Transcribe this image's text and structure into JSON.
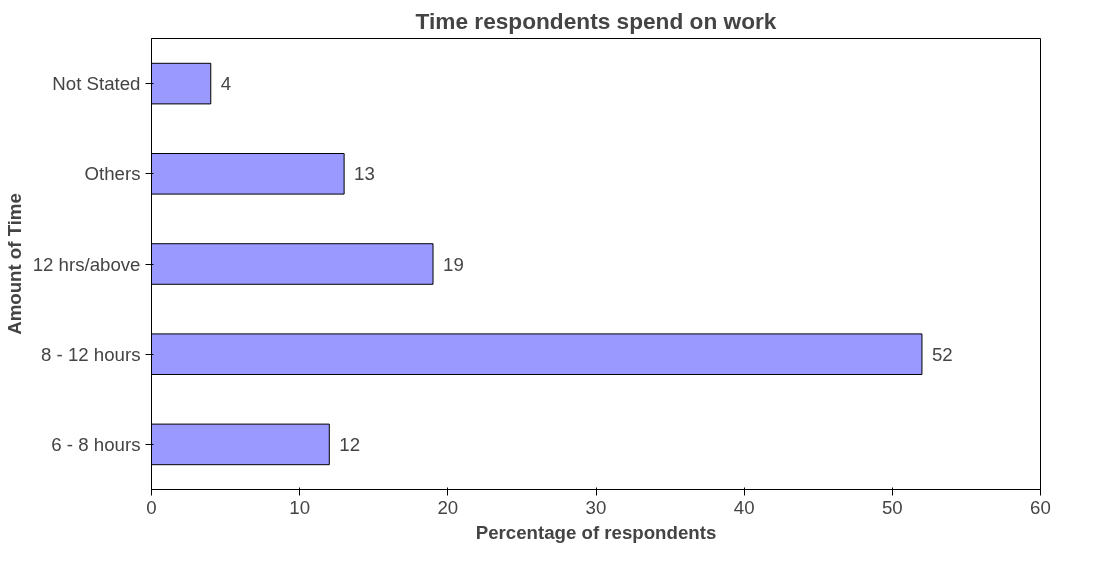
{
  "chart_data": {
    "type": "bar",
    "orientation": "horizontal",
    "title": "Time respondents spend on work",
    "xlabel": "Percentage of respondents",
    "ylabel": "Amount of Time",
    "categories": [
      "Not Stated",
      "Others",
      "12 hrs/above",
      "8 - 12 hours",
      "6 - 8 hours"
    ],
    "values": [
      4,
      13,
      19,
      52,
      12
    ],
    "color": "#9999ff",
    "xlim": [
      0,
      60
    ],
    "xticks": [
      0,
      10,
      20,
      30,
      40,
      50,
      60
    ],
    "grid": false,
    "data_labels": true
  }
}
